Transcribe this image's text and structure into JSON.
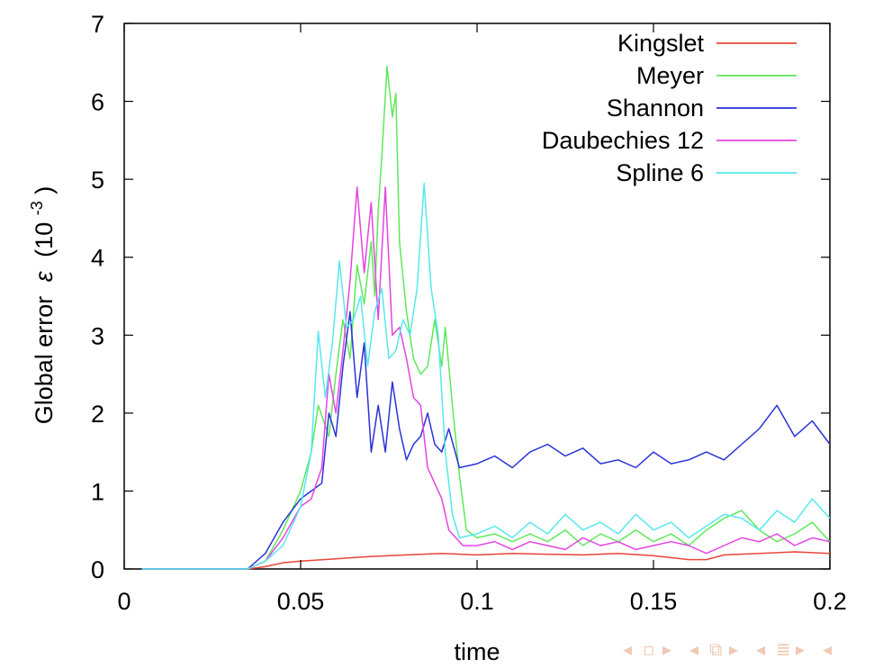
{
  "chart_data": {
    "type": "line",
    "title": "",
    "xlabel": "time",
    "ylabel": "Global error",
    "ylabel_symbol": "ε",
    "ylabel_unit_base": "(10",
    "ylabel_unit_exp": "-3",
    "ylabel_unit_close": ")",
    "xlim": [
      0,
      0.2
    ],
    "ylim": [
      0,
      7
    ],
    "xticks": [
      0,
      0.05,
      0.1,
      0.15,
      0.2
    ],
    "xtick_labels": [
      "0",
      "0.05",
      "0.1",
      "0.15",
      "0.2"
    ],
    "yticks": [
      0,
      1,
      2,
      3,
      4,
      5,
      6,
      7
    ],
    "ytick_labels": [
      "0",
      "1",
      "2",
      "3",
      "4",
      "5",
      "6",
      "7"
    ],
    "grid": false,
    "legend_position": "top-right",
    "series": [
      {
        "name": "Kingslet",
        "color": "#e8463c",
        "x": [
          0.005,
          0.035,
          0.04,
          0.045,
          0.05,
          0.06,
          0.07,
          0.08,
          0.09,
          0.1,
          0.11,
          0.12,
          0.13,
          0.14,
          0.15,
          0.16,
          0.165,
          0.17,
          0.18,
          0.19,
          0.2
        ],
        "y": [
          0,
          0,
          0.03,
          0.08,
          0.1,
          0.13,
          0.16,
          0.18,
          0.2,
          0.18,
          0.2,
          0.19,
          0.18,
          0.2,
          0.17,
          0.12,
          0.12,
          0.18,
          0.2,
          0.22,
          0.2
        ]
      },
      {
        "name": "Meyer",
        "color": "#5ee85a",
        "x": [
          0.005,
          0.035,
          0.04,
          0.045,
          0.05,
          0.053,
          0.055,
          0.058,
          0.06,
          0.062,
          0.064,
          0.066,
          0.068,
          0.07,
          0.071,
          0.072,
          0.073,
          0.0745,
          0.076,
          0.077,
          0.078,
          0.08,
          0.082,
          0.084,
          0.086,
          0.088,
          0.09,
          0.091,
          0.093,
          0.095,
          0.097,
          0.1,
          0.105,
          0.11,
          0.115,
          0.12,
          0.125,
          0.13,
          0.135,
          0.14,
          0.145,
          0.15,
          0.155,
          0.16,
          0.165,
          0.17,
          0.175,
          0.18,
          0.185,
          0.19,
          0.195,
          0.2
        ],
        "y": [
          0,
          0,
          0.1,
          0.5,
          1.0,
          1.5,
          2.1,
          1.7,
          2.5,
          3.2,
          2.7,
          3.9,
          3.4,
          4.2,
          3.5,
          4.6,
          5.3,
          6.45,
          5.8,
          6.1,
          4.2,
          3.3,
          2.7,
          2.5,
          2.6,
          3.2,
          2.6,
          3.1,
          2.1,
          1.2,
          0.5,
          0.4,
          0.45,
          0.35,
          0.45,
          0.35,
          0.5,
          0.3,
          0.45,
          0.35,
          0.5,
          0.35,
          0.45,
          0.3,
          0.5,
          0.65,
          0.75,
          0.5,
          0.35,
          0.45,
          0.6,
          0.35
        ]
      },
      {
        "name": "Shannon",
        "color": "#2a32d8",
        "x": [
          0.005,
          0.035,
          0.04,
          0.045,
          0.05,
          0.053,
          0.056,
          0.058,
          0.06,
          0.062,
          0.064,
          0.066,
          0.068,
          0.07,
          0.072,
          0.074,
          0.076,
          0.078,
          0.08,
          0.082,
          0.084,
          0.086,
          0.088,
          0.09,
          0.092,
          0.095,
          0.1,
          0.105,
          0.11,
          0.115,
          0.12,
          0.125,
          0.13,
          0.135,
          0.14,
          0.145,
          0.15,
          0.155,
          0.16,
          0.165,
          0.17,
          0.175,
          0.18,
          0.185,
          0.19,
          0.195,
          0.2
        ],
        "y": [
          0,
          0,
          0.2,
          0.6,
          0.9,
          1.0,
          1.1,
          2.0,
          1.7,
          2.6,
          3.3,
          2.2,
          2.9,
          1.5,
          2.1,
          1.5,
          2.4,
          1.8,
          1.4,
          1.6,
          1.7,
          2.0,
          1.6,
          1.5,
          1.8,
          1.3,
          1.35,
          1.45,
          1.3,
          1.5,
          1.6,
          1.45,
          1.55,
          1.35,
          1.4,
          1.3,
          1.5,
          1.35,
          1.4,
          1.5,
          1.4,
          1.6,
          1.8,
          2.1,
          1.7,
          1.9,
          1.6
        ]
      },
      {
        "name": "Daubechies 12",
        "color": "#e444e2",
        "x": [
          0.005,
          0.035,
          0.04,
          0.045,
          0.05,
          0.053,
          0.056,
          0.058,
          0.06,
          0.062,
          0.064,
          0.066,
          0.068,
          0.07,
          0.072,
          0.074,
          0.076,
          0.078,
          0.08,
          0.082,
          0.084,
          0.086,
          0.088,
          0.09,
          0.092,
          0.094,
          0.096,
          0.1,
          0.105,
          0.11,
          0.115,
          0.12,
          0.125,
          0.13,
          0.135,
          0.14,
          0.145,
          0.15,
          0.155,
          0.16,
          0.165,
          0.17,
          0.175,
          0.18,
          0.185,
          0.19,
          0.195,
          0.2
        ],
        "y": [
          0,
          0,
          0.1,
          0.4,
          0.8,
          0.9,
          1.3,
          2.5,
          2.0,
          2.8,
          3.7,
          4.9,
          3.8,
          4.7,
          3.2,
          4.9,
          3.0,
          3.1,
          2.7,
          2.2,
          2.1,
          1.3,
          1.1,
          0.9,
          0.5,
          0.4,
          0.3,
          0.3,
          0.35,
          0.25,
          0.35,
          0.3,
          0.25,
          0.4,
          0.3,
          0.35,
          0.25,
          0.3,
          0.35,
          0.3,
          0.2,
          0.3,
          0.4,
          0.35,
          0.45,
          0.3,
          0.4,
          0.35
        ]
      },
      {
        "name": "Spline 6",
        "color": "#56e8ee",
        "x": [
          0.005,
          0.035,
          0.04,
          0.045,
          0.05,
          0.053,
          0.055,
          0.057,
          0.059,
          0.061,
          0.063,
          0.065,
          0.067,
          0.069,
          0.071,
          0.073,
          0.075,
          0.077,
          0.079,
          0.081,
          0.083,
          0.085,
          0.087,
          0.089,
          0.091,
          0.093,
          0.095,
          0.1,
          0.105,
          0.11,
          0.115,
          0.12,
          0.125,
          0.13,
          0.135,
          0.14,
          0.145,
          0.15,
          0.155,
          0.16,
          0.165,
          0.17,
          0.175,
          0.18,
          0.185,
          0.19,
          0.195,
          0.2
        ],
        "y": [
          0,
          0,
          0.1,
          0.3,
          0.8,
          1.5,
          3.05,
          2.2,
          2.9,
          3.95,
          3.1,
          3.2,
          3.5,
          2.6,
          3.3,
          3.6,
          2.7,
          2.8,
          3.2,
          3.0,
          3.6,
          4.95,
          3.6,
          3.0,
          1.5,
          0.7,
          0.4,
          0.45,
          0.55,
          0.4,
          0.6,
          0.45,
          0.7,
          0.5,
          0.6,
          0.45,
          0.7,
          0.5,
          0.6,
          0.4,
          0.55,
          0.7,
          0.65,
          0.5,
          0.75,
          0.6,
          0.9,
          0.65
        ]
      }
    ]
  },
  "nav_icons": [
    "◂",
    "▫",
    "▸",
    "◂",
    "⧉",
    "▸",
    "◂",
    "≣",
    "▸",
    "◂"
  ]
}
